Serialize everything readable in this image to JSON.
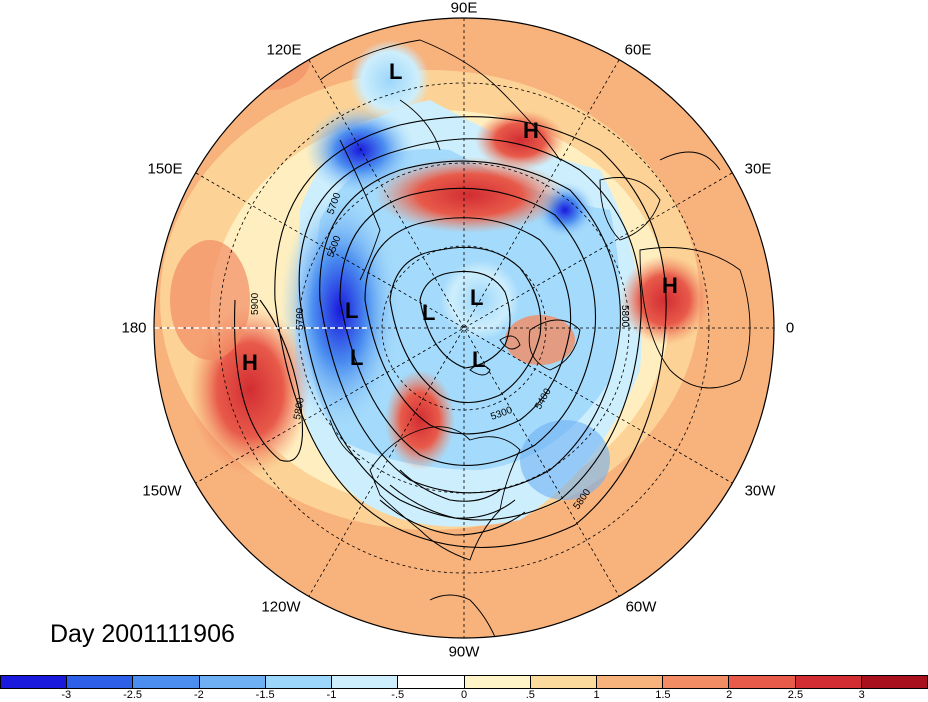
{
  "map": {
    "projection": "north-polar-stereographic",
    "day_label": "Day 2001111906",
    "longitude_labels": [
      {
        "key": "lon-90e",
        "text": "90E"
      },
      {
        "key": "lon-60e",
        "text": "60E"
      },
      {
        "key": "lon-30e",
        "text": "30E"
      },
      {
        "key": "lon-0",
        "text": "0"
      },
      {
        "key": "lon-30w",
        "text": "30W"
      },
      {
        "key": "lon-60w",
        "text": "60W"
      },
      {
        "key": "lon-90w",
        "text": "90W"
      },
      {
        "key": "lon-120w",
        "text": "120W"
      },
      {
        "key": "lon-150w",
        "text": "150W"
      },
      {
        "key": "lon-180",
        "text": "180"
      },
      {
        "key": "lon-150e",
        "text": "150E"
      },
      {
        "key": "lon-120e",
        "text": "120E"
      }
    ],
    "contour_labels": [
      "5700",
      "5500",
      "5900",
      "5700",
      "5800",
      "5300",
      "5400",
      "5800",
      "5800"
    ],
    "pressure_centers": [
      "L",
      "H",
      "L",
      "L",
      "L",
      "L",
      "L",
      "L",
      "H",
      "H"
    ],
    "colorbar": {
      "colors": [
        "#1a1adc",
        "#2d5fe8",
        "#4b8ef0",
        "#6fb0f5",
        "#9cd6fa",
        "#cdeefc",
        "#ffffff",
        "#fff4c8",
        "#fcd99c",
        "#f8b27c",
        "#f28c64",
        "#e85a4a",
        "#d22d32",
        "#a8101e"
      ],
      "labels": [
        "-3",
        "-2.5",
        "-2",
        "-1.5",
        "-1",
        "-.5",
        "0",
        ".5",
        "1",
        "1.5",
        "2",
        "2.5",
        "3"
      ]
    }
  }
}
